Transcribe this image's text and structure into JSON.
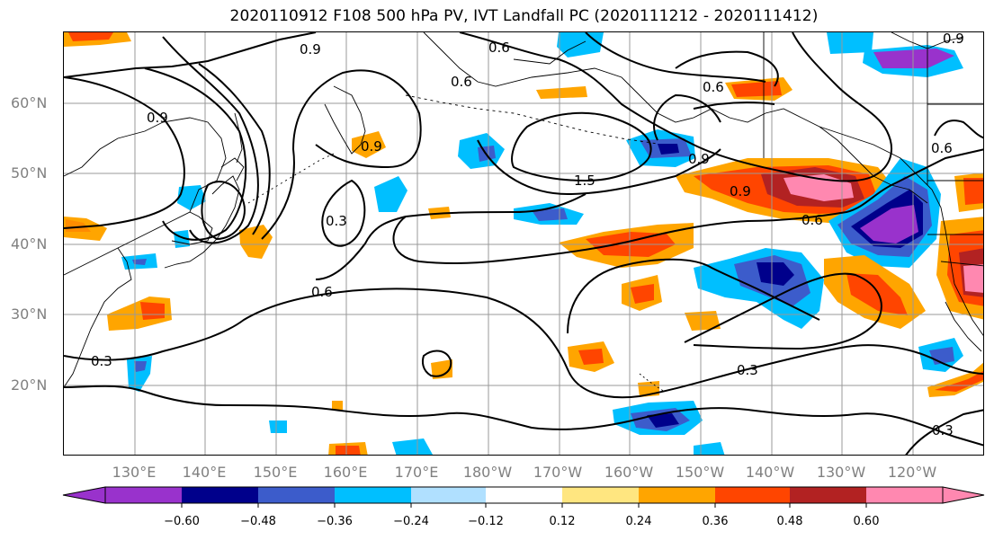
{
  "title": "2020110912 F108 500 hPa PV, IVT Landfall PC (2020111212 - 2020111412)",
  "map": {
    "lat_labels": [
      "60°N",
      "50°N",
      "40°N",
      "30°N",
      "20°N"
    ],
    "lon_labels": [
      "130°E",
      "140°E",
      "150°E",
      "160°E",
      "170°E",
      "180°W",
      "170°W",
      "160°W",
      "150°W",
      "140°W",
      "130°W",
      "120°W"
    ],
    "contour_labels": [
      "0.9",
      "0.6",
      "0.6",
      "0.9",
      "0.9",
      "0.6",
      "1.5",
      "0.9",
      "0.9",
      "0.6",
      "0.6",
      "0.3",
      "0.6",
      "0.3",
      "0.3",
      "0.3",
      "0.9"
    ]
  },
  "colorbar": {
    "tick_labels": [
      "−0.60",
      "−0.48",
      "−0.36",
      "−0.24",
      "−0.12",
      "0.12",
      "0.24",
      "0.36",
      "0.48",
      "0.60"
    ],
    "colors": [
      "#9932cc",
      "#00008b",
      "#3c5ccb",
      "#00bfff",
      "#b0e0ff",
      "#ffffff",
      "#ffe680",
      "#ffa500",
      "#ff4500",
      "#b22222",
      "#ff88b0"
    ]
  }
}
